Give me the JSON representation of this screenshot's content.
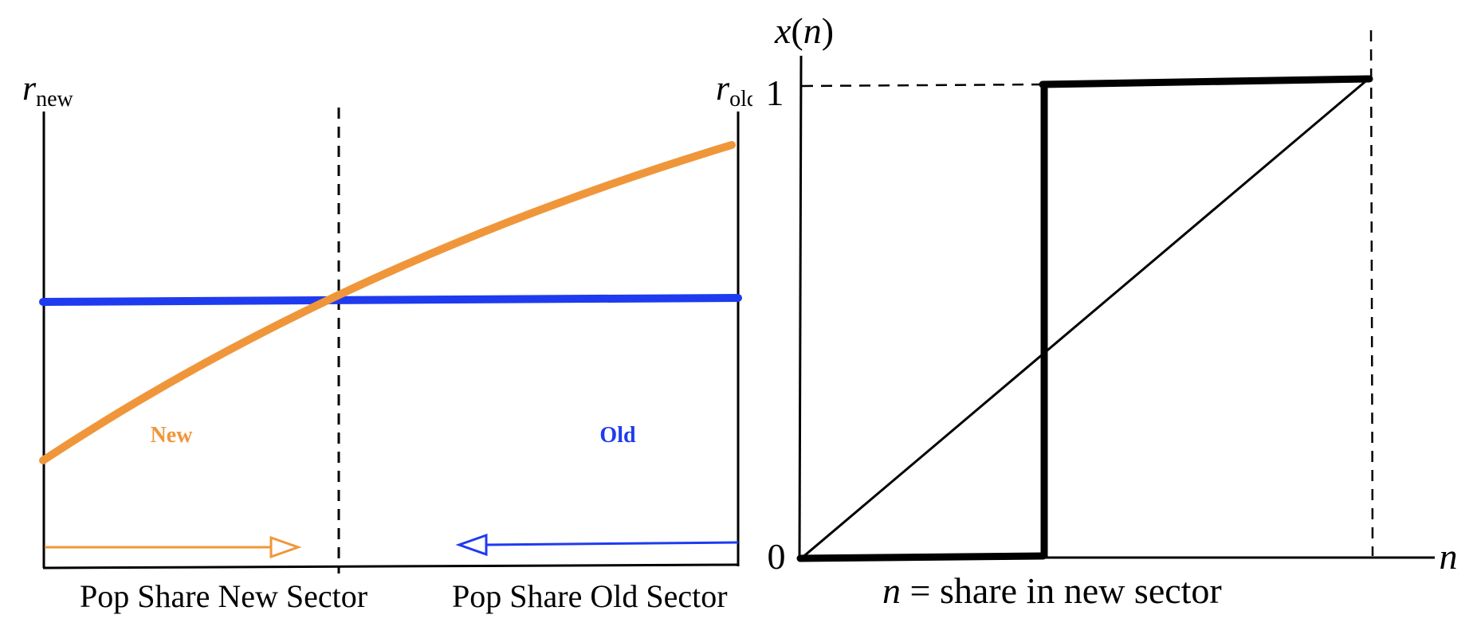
{
  "left_panel": {
    "left_axis_label": {
      "base": "r",
      "subscript": "new"
    },
    "right_axis_label": {
      "base": "r",
      "subscript": "old"
    },
    "new_curve_label": "New",
    "old_curve_label": "Old",
    "x_label_left": "Pop Share New Sector",
    "x_label_right": "Pop Share Old Sector",
    "colors": {
      "new": "#F0963A",
      "old": "#1E3BF0",
      "axes": "#000000"
    }
  },
  "right_panel": {
    "y_axis_label": {
      "x": "x",
      "open": "(",
      "n": "n",
      "close": ")"
    },
    "x_axis_label": "n",
    "tick_y_top": "1",
    "tick_y_bottom": "0",
    "caption": {
      "var": "n",
      "rest": " = share in new sector"
    },
    "colors": {
      "step": "#000000",
      "diagonal": "#000000"
    }
  }
}
